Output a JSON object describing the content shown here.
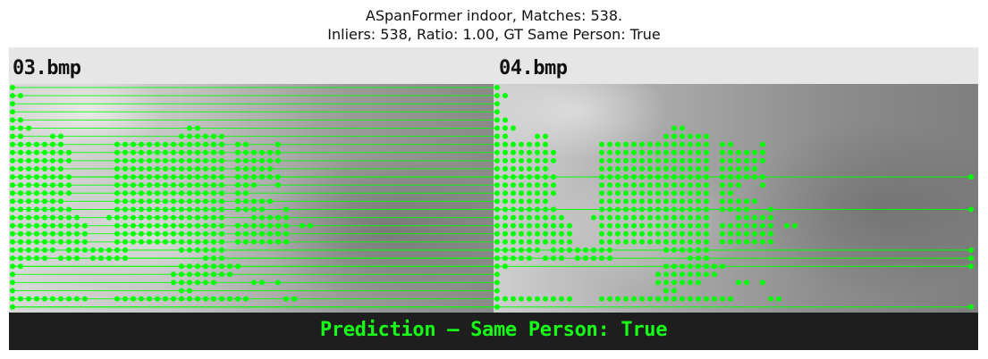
{
  "title": {
    "line1": "ASpanFormer indoor, Matches: 538.",
    "line2": "Inliers: 538, Ratio: 1.00, GT Same Person: True"
  },
  "images": {
    "left_filename": "03.bmp",
    "right_filename": "04.bmp"
  },
  "prediction": "Prediction — Same Person: True",
  "match_color": "#00ff00",
  "matches": {
    "total": 538,
    "inliers": 538,
    "ratio": 1.0
  }
}
